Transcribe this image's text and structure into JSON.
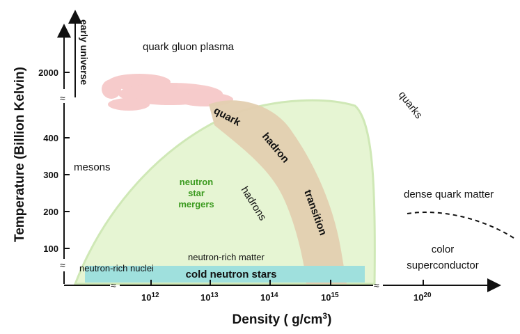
{
  "axes": {
    "y_title": "Temperature (Billion Kelvin)",
    "x_title_main": "Density ( g/cm",
    "x_title_sup": "3",
    "x_title_end": ")",
    "y_ticks": [
      "100",
      "200",
      "300",
      "400",
      "2000"
    ],
    "x_ticks": [
      {
        "base": "10",
        "exp": "12"
      },
      {
        "base": "10",
        "exp": "13"
      },
      {
        "base": "10",
        "exp": "14"
      },
      {
        "base": "10",
        "exp": "15"
      },
      {
        "base": "10",
        "exp": "20"
      }
    ],
    "break_symbol": "≈",
    "arrow_label": "early universe"
  },
  "regions": {
    "qgp": "quark gluon plasma",
    "quarks": "quarks",
    "mesons": "mesons",
    "hadrons": "hadrons",
    "dense_quark_matter": "dense quark matter",
    "color_superconductor_1": "color",
    "color_superconductor_2": "superconductor",
    "neutron_rich_matter": "neutron-rich matter",
    "neutron_rich_nuclei": "neutron-rich nuclei",
    "cold_neutron_stars": "cold neutron stars",
    "mergers": [
      "neutron",
      "star",
      "mergers"
    ],
    "transition": [
      "quark",
      "hadron",
      "transition"
    ]
  },
  "colors": {
    "hadron_region": "#e6f5d3",
    "hadron_border": "#cfe8b6",
    "transition_band": "#e3cfb0",
    "qgp_cloud": "#f6c6c6",
    "cold_neutron_bar": "#9fe0dd",
    "mergers_text": "#3a9a1e"
  }
}
